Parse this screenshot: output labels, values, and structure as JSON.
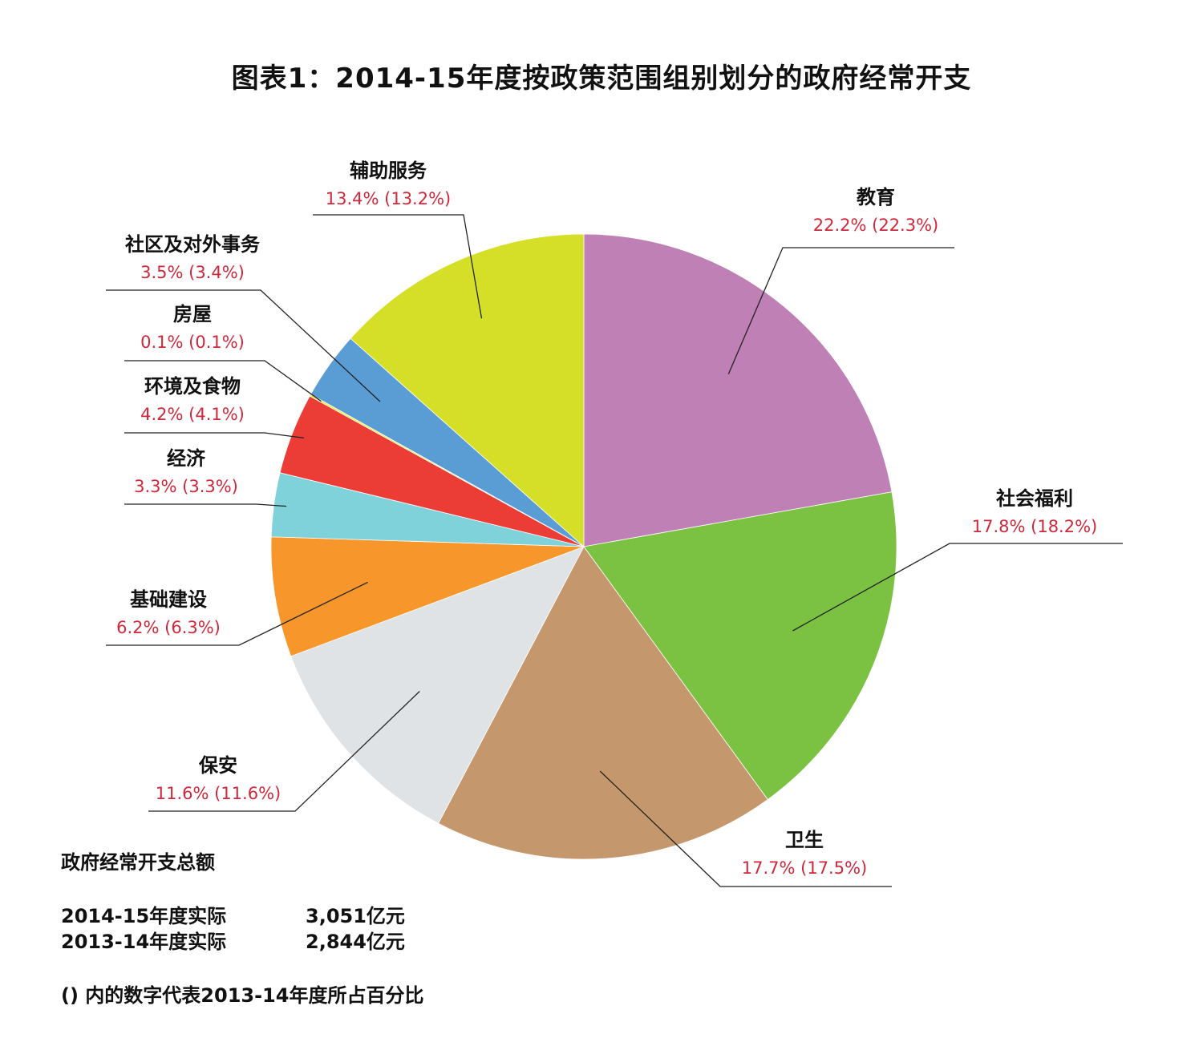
{
  "title": "图表1：2014-15年度按政策范围组别划分的政府经常开支",
  "chart_data": {
    "type": "pie",
    "title": "图表1：2014-15年度按政策范围组别划分的政府经常开支",
    "start": "12 o'clock, clockwise",
    "slices": [
      {
        "name": "教育",
        "value": 22.2,
        "prev": 22.3,
        "label": "22.2% (22.3%)",
        "color": "#bf80b5"
      },
      {
        "name": "社会福利",
        "value": 17.8,
        "prev": 18.2,
        "label": "17.8% (18.2%)",
        "color": "#7cc242"
      },
      {
        "name": "卫生",
        "value": 17.7,
        "prev": 17.5,
        "label": "17.7% (17.5%)",
        "color": "#c4976c"
      },
      {
        "name": "保安",
        "value": 11.6,
        "prev": 11.6,
        "label": "11.6% (11.6%)",
        "color": "#e0e3e6"
      },
      {
        "name": "基础建设",
        "value": 6.2,
        "prev": 6.3,
        "label": "6.2% (6.3%)",
        "color": "#f7962a"
      },
      {
        "name": "经济",
        "value": 3.3,
        "prev": 3.3,
        "label": "3.3% (3.3%)",
        "color": "#7fd1da"
      },
      {
        "name": "环境及食物",
        "value": 4.2,
        "prev": 4.1,
        "label": "4.2% (4.1%)",
        "color": "#eb3d35"
      },
      {
        "name": "房屋",
        "value": 0.1,
        "prev": 0.1,
        "label": "0.1% (0.1%)",
        "color": "#f6ea2e"
      },
      {
        "name": "社区及对外事务",
        "value": 3.5,
        "prev": 3.4,
        "label": "3.5% (3.4%)",
        "color": "#5a9cd4"
      },
      {
        "name": "辅助服务",
        "value": 13.4,
        "prev": 13.2,
        "label": "13.4% (13.2%)",
        "color": "#d6df28"
      }
    ]
  },
  "totals": {
    "heading": "政府经常开支总额",
    "rows": [
      {
        "label": "2014-15年度实际",
        "value": "3,051亿元"
      },
      {
        "label": "2013-14年度实际",
        "value": "2,844亿元"
      }
    ]
  },
  "footnote": "() 内的数字代表2013-14年度所占百分比"
}
